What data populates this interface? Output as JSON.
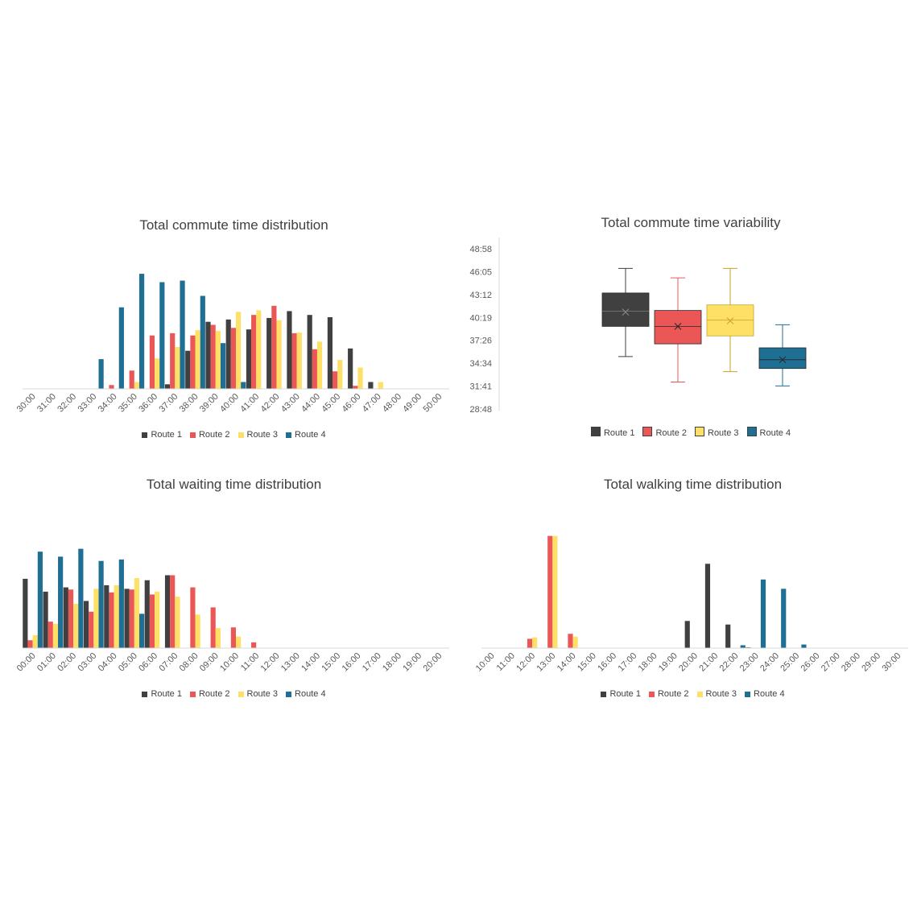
{
  "colors": {
    "Route 1": "#404040",
    "Route 2": "#EB5757",
    "Route 3": "#FFE066",
    "Route 4": "#1F6E93",
    "axis": "#D9D9D9",
    "text": "#595959"
  },
  "chart_data": [
    {
      "type": "bar",
      "title": "Total commute time distribution",
      "xlabel": "",
      "ylabel": "",
      "categories": [
        "30:00",
        "31:00",
        "32:00",
        "33:00",
        "34:00",
        "35:00",
        "36:00",
        "37:00",
        "38:00",
        "39:00",
        "40:00",
        "41:00",
        "42:00",
        "43:00",
        "44:00",
        "45:00",
        "46:00",
        "47:00",
        "48:00",
        "49:00",
        "50:00"
      ],
      "ylim": [
        0,
        150
      ],
      "legend_position": "bottom",
      "gridlines": false,
      "series": [
        {
          "name": "Route 1",
          "values": [
            0,
            0,
            0,
            0,
            0,
            0,
            0,
            6,
            50,
            88,
            91,
            78,
            93,
            102,
            97,
            94,
            53,
            9,
            0,
            0,
            0
          ]
        },
        {
          "name": "Route 2",
          "values": [
            0,
            0,
            0,
            0,
            5,
            24,
            70,
            73,
            70,
            84,
            80,
            97,
            109,
            73,
            52,
            23,
            4,
            0,
            0,
            0,
            0
          ]
        },
        {
          "name": "Route 3",
          "values": [
            0,
            0,
            0,
            0,
            0,
            9,
            40,
            55,
            77,
            76,
            101,
            103,
            90,
            74,
            62,
            38,
            28,
            9,
            0,
            0,
            0
          ]
        },
        {
          "name": "Route 4",
          "values": [
            0,
            0,
            0,
            39,
            107,
            151,
            140,
            142,
            122,
            60,
            9,
            0,
            0,
            0,
            0,
            0,
            0,
            0,
            0,
            0,
            0
          ]
        }
      ]
    },
    {
      "type": "box",
      "title": "Total commute time variability",
      "y_tick_labels": [
        "28:48",
        "31:41",
        "34:34",
        "37:26",
        "40:19",
        "43:12",
        "46:05",
        "48:58"
      ],
      "ylim_minutes": [
        28.8,
        48.967
      ],
      "legend_position": "bottom",
      "gridlines": false,
      "series": [
        {
          "name": "Route 1",
          "min": 35.4,
          "q1": 39.2,
          "median": 41.1,
          "q3": 43.4,
          "max": 46.5,
          "mean": 41.0
        },
        {
          "name": "Route 2",
          "min": 32.2,
          "q1": 37.0,
          "median": 39.2,
          "q3": 41.2,
          "max": 45.3,
          "mean": 39.2
        },
        {
          "name": "Route 3",
          "min": 33.5,
          "q1": 38.0,
          "median": 40.0,
          "q3": 41.9,
          "max": 46.5,
          "mean": 39.9
        },
        {
          "name": "Route 4",
          "min": 31.7,
          "q1": 33.9,
          "median": 35.0,
          "q3": 36.5,
          "max": 39.4,
          "mean": 35.0
        }
      ]
    },
    {
      "type": "bar",
      "title": "Total waiting time distribution",
      "xlabel": "",
      "ylabel": "",
      "categories": [
        "00:00",
        "01:00",
        "02:00",
        "03:00",
        "04:00",
        "05:00",
        "06:00",
        "07:00",
        "08:00",
        "09:00",
        "10:00",
        "11:00",
        "12:00",
        "13:00",
        "14:00",
        "15:00",
        "16:00",
        "17:00",
        "18:00",
        "19:00",
        "20:00"
      ],
      "ylim": [
        0,
        160
      ],
      "legend_position": "bottom",
      "gridlines": false,
      "series": [
        {
          "name": "Route 1",
          "values": [
            97,
            79,
            85,
            66,
            88,
            83,
            95,
            102,
            0,
            0,
            0,
            0,
            0,
            0,
            0,
            0,
            0,
            0,
            0,
            0,
            0
          ]
        },
        {
          "name": "Route 2",
          "values": [
            11,
            37,
            82,
            51,
            78,
            82,
            75,
            102,
            85,
            57,
            29,
            8,
            0,
            0,
            0,
            0,
            0,
            0,
            0,
            0,
            0
          ]
        },
        {
          "name": "Route 3",
          "values": [
            18,
            34,
            62,
            83,
            88,
            98,
            79,
            72,
            47,
            28,
            16,
            0,
            0,
            0,
            0,
            0,
            0,
            0,
            0,
            0,
            0
          ]
        },
        {
          "name": "Route 4",
          "values": [
            135,
            128,
            139,
            122,
            124,
            48,
            0,
            0,
            0,
            0,
            0,
            0,
            0,
            0,
            0,
            0,
            0,
            0,
            0,
            0,
            0
          ]
        }
      ]
    },
    {
      "type": "bar",
      "title": "Total walking time distribution",
      "xlabel": "",
      "ylabel": "",
      "categories": [
        "10:00",
        "11:00",
        "12:00",
        "13:00",
        "14:00",
        "15:00",
        "16:00",
        "17:00",
        "18:00",
        "19:00",
        "20:00",
        "21:00",
        "22:00",
        "23:00",
        "24:00",
        "25:00",
        "26:00",
        "27:00",
        "28:00",
        "29:00",
        "30:00"
      ],
      "ylim": [
        0,
        160
      ],
      "legend_position": "bottom",
      "gridlines": false,
      "series": [
        {
          "name": "Route 1",
          "values": [
            0,
            0,
            0,
            0,
            0,
            0,
            0,
            0,
            0,
            0,
            38,
            118,
            33,
            1,
            0,
            0,
            0,
            0,
            0,
            0,
            0
          ]
        },
        {
          "name": "Route 2",
          "values": [
            0,
            0,
            13,
            157,
            20,
            0,
            0,
            0,
            0,
            0,
            0,
            0,
            0,
            0,
            0,
            0,
            0,
            0,
            0,
            0,
            0
          ]
        },
        {
          "name": "Route 3",
          "values": [
            0,
            0,
            15,
            157,
            16,
            0,
            0,
            0,
            0,
            0,
            0,
            0,
            0,
            0,
            0,
            0,
            0,
            0,
            0,
            0,
            0
          ]
        },
        {
          "name": "Route 4",
          "values": [
            0,
            0,
            0,
            0,
            0,
            0,
            0,
            0,
            0,
            0,
            0,
            0,
            4,
            96,
            83,
            5,
            0,
            0,
            0,
            0,
            0
          ]
        }
      ]
    }
  ]
}
